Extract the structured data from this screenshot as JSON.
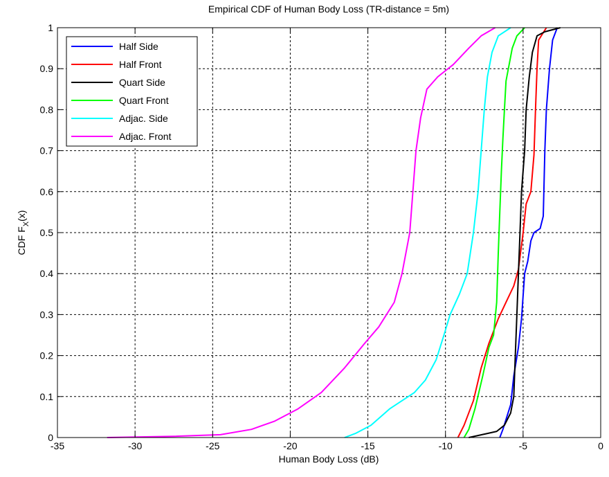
{
  "chart_data": {
    "type": "line",
    "title": "Empirical CDF of Human Body Loss (TR-distance = 5m)",
    "xlabel": "Human Body Loss (dB)",
    "ylabel_main": "CDF F",
    "ylabel_sub": "X",
    "ylabel_arg": "(x)",
    "xlim": [
      -35,
      0
    ],
    "ylim": [
      0,
      1
    ],
    "xticks": [
      "-35",
      "-30",
      "-25",
      "-20",
      "-15",
      "-10",
      "-5",
      "0"
    ],
    "yticks": [
      "0",
      "0.1",
      "0.2",
      "0.3",
      "0.4",
      "0.5",
      "0.6",
      "0.7",
      "0.8",
      "0.9",
      "1"
    ],
    "grid": true,
    "legend_position": "top-left",
    "series": [
      {
        "name": "Half Side",
        "color": "#0000ff",
        "points": [
          [
            -6.5,
            0
          ],
          [
            -6.3,
            0.02
          ],
          [
            -5.8,
            0.08
          ],
          [
            -5.6,
            0.15
          ],
          [
            -5.3,
            0.22
          ],
          [
            -5.1,
            0.29
          ],
          [
            -4.9,
            0.4
          ],
          [
            -4.7,
            0.43
          ],
          [
            -4.5,
            0.48
          ],
          [
            -4.3,
            0.5
          ],
          [
            -3.9,
            0.51
          ],
          [
            -3.7,
            0.54
          ],
          [
            -3.6,
            0.7
          ],
          [
            -3.5,
            0.8
          ],
          [
            -3.3,
            0.9
          ],
          [
            -3.1,
            0.97
          ],
          [
            -2.8,
            1
          ]
        ]
      },
      {
        "name": "Half Front",
        "color": "#ff0000",
        "points": [
          [
            -9.2,
            0
          ],
          [
            -8.8,
            0.03
          ],
          [
            -8.2,
            0.09
          ],
          [
            -7.7,
            0.17
          ],
          [
            -7.2,
            0.23
          ],
          [
            -6.6,
            0.29
          ],
          [
            -6.1,
            0.33
          ],
          [
            -5.6,
            0.37
          ],
          [
            -5.3,
            0.41
          ],
          [
            -5.0,
            0.5
          ],
          [
            -4.8,
            0.57
          ],
          [
            -4.5,
            0.6
          ],
          [
            -4.3,
            0.69
          ],
          [
            -4.2,
            0.8
          ],
          [
            -4.1,
            0.9
          ],
          [
            -4.0,
            0.97
          ],
          [
            -3.5,
            1
          ]
        ]
      },
      {
        "name": "Quart Side",
        "color": "#000000",
        "points": [
          [
            -8.5,
            0
          ],
          [
            -7.3,
            0.01
          ],
          [
            -6.7,
            0.015
          ],
          [
            -6.2,
            0.03
          ],
          [
            -5.8,
            0.06
          ],
          [
            -5.6,
            0.1
          ],
          [
            -5.5,
            0.2
          ],
          [
            -5.4,
            0.3
          ],
          [
            -5.3,
            0.4
          ],
          [
            -5.2,
            0.5
          ],
          [
            -5.1,
            0.6
          ],
          [
            -4.9,
            0.7
          ],
          [
            -4.8,
            0.8
          ],
          [
            -4.6,
            0.88
          ],
          [
            -4.4,
            0.94
          ],
          [
            -4.1,
            0.98
          ],
          [
            -3.6,
            0.99
          ],
          [
            -2.6,
            1
          ]
        ]
      },
      {
        "name": "Quart Front",
        "color": "#00ff00",
        "points": [
          [
            -8.8,
            0
          ],
          [
            -8.5,
            0.02
          ],
          [
            -8.1,
            0.07
          ],
          [
            -7.6,
            0.15
          ],
          [
            -7.2,
            0.22
          ],
          [
            -6.9,
            0.25
          ],
          [
            -6.7,
            0.33
          ],
          [
            -6.6,
            0.45
          ],
          [
            -6.5,
            0.55
          ],
          [
            -6.4,
            0.65
          ],
          [
            -6.3,
            0.73
          ],
          [
            -6.2,
            0.8
          ],
          [
            -6.1,
            0.87
          ],
          [
            -5.9,
            0.91
          ],
          [
            -5.7,
            0.95
          ],
          [
            -5.4,
            0.98
          ],
          [
            -4.9,
            1
          ]
        ]
      },
      {
        "name": "Adjac. Side",
        "color": "#00ffff",
        "points": [
          [
            -16.5,
            0
          ],
          [
            -15.8,
            0.01
          ],
          [
            -14.8,
            0.03
          ],
          [
            -13.6,
            0.07
          ],
          [
            -12.0,
            0.11
          ],
          [
            -11.3,
            0.14
          ],
          [
            -10.6,
            0.19
          ],
          [
            -10.1,
            0.25
          ],
          [
            -9.7,
            0.3
          ],
          [
            -9.1,
            0.35
          ],
          [
            -8.6,
            0.4
          ],
          [
            -8.2,
            0.5
          ],
          [
            -7.9,
            0.6
          ],
          [
            -7.7,
            0.7
          ],
          [
            -7.5,
            0.8
          ],
          [
            -7.3,
            0.88
          ],
          [
            -7.0,
            0.94
          ],
          [
            -6.6,
            0.98
          ],
          [
            -5.8,
            1
          ]
        ]
      },
      {
        "name": "Adjac. Front",
        "color": "#ff00ff",
        "points": [
          [
            -31.8,
            0
          ],
          [
            -27.5,
            0.003
          ],
          [
            -24.5,
            0.007
          ],
          [
            -22.5,
            0.02
          ],
          [
            -21.0,
            0.04
          ],
          [
            -19.5,
            0.07
          ],
          [
            -18.0,
            0.11
          ],
          [
            -16.5,
            0.17
          ],
          [
            -15.2,
            0.23
          ],
          [
            -14.3,
            0.27
          ],
          [
            -13.3,
            0.33
          ],
          [
            -12.8,
            0.4
          ],
          [
            -12.3,
            0.5
          ],
          [
            -12.1,
            0.6
          ],
          [
            -11.9,
            0.7
          ],
          [
            -11.6,
            0.78
          ],
          [
            -11.2,
            0.85
          ],
          [
            -10.5,
            0.88
          ],
          [
            -9.5,
            0.91
          ],
          [
            -8.5,
            0.95
          ],
          [
            -7.7,
            0.98
          ],
          [
            -6.8,
            1
          ]
        ]
      }
    ]
  }
}
